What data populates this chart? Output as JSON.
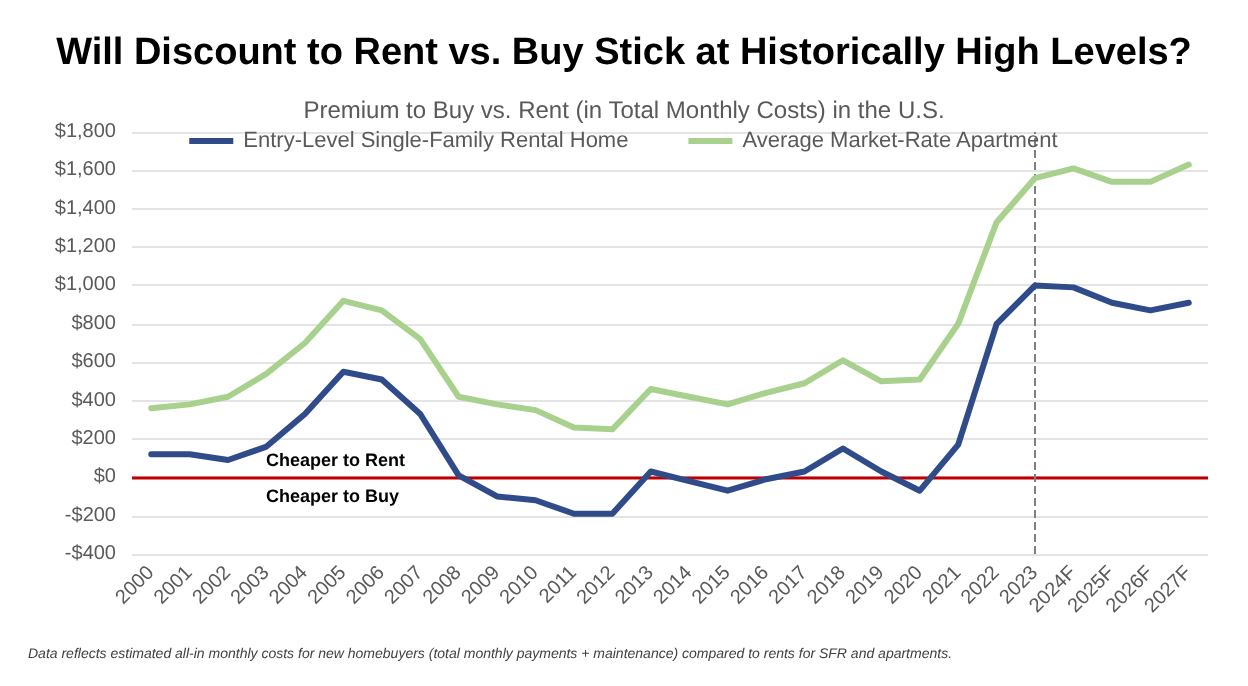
{
  "chart_data": {
    "type": "line",
    "title": "Will Discount to Rent vs. Buy Stick at Historically High Levels?",
    "subtitle": "Premium to Buy vs. Rent (in Total Monthly Costs) in the U.S.",
    "categories": [
      "2000",
      "2001",
      "2002",
      "2003",
      "2004",
      "2005",
      "2006",
      "2007",
      "2008",
      "2009",
      "2010",
      "2011",
      "2012",
      "2013",
      "2014",
      "2015",
      "2016",
      "2017",
      "2018",
      "2019",
      "2020",
      "2021",
      "2022",
      "2023",
      "2024F",
      "2025F",
      "2026F",
      "2027F"
    ],
    "series": [
      {
        "name": "Entry-Level Single-Family Rental Home",
        "color": "#2f4b8a",
        "values": [
          120,
          120,
          90,
          160,
          330,
          550,
          510,
          330,
          10,
          -100,
          -120,
          -190,
          -190,
          30,
          -20,
          -70,
          -10,
          30,
          150,
          30,
          -70,
          170,
          800,
          1000,
          990,
          910,
          870,
          910
        ]
      },
      {
        "name": "Average Market-Rate Apartment",
        "color": "#a9d18e",
        "values": [
          360,
          380,
          420,
          540,
          700,
          920,
          870,
          720,
          420,
          380,
          350,
          260,
          250,
          460,
          420,
          380,
          440,
          490,
          610,
          500,
          510,
          800,
          1330,
          1560,
          1610,
          1540,
          1540,
          1630
        ]
      }
    ],
    "ylim": [
      -400,
      1800
    ],
    "yticks": [
      {
        "value": -400,
        "label": "-$400"
      },
      {
        "value": -200,
        "label": "-$200"
      },
      {
        "value": 0,
        "label": "$0"
      },
      {
        "value": 200,
        "label": "$200"
      },
      {
        "value": 400,
        "label": "$400"
      },
      {
        "value": 600,
        "label": "$600"
      },
      {
        "value": 800,
        "label": "$800"
      },
      {
        "value": 1000,
        "label": "$1,000"
      },
      {
        "value": 1200,
        "label": "$1,200"
      },
      {
        "value": 1400,
        "label": "$1,400"
      },
      {
        "value": 1600,
        "label": "$1,600"
      },
      {
        "value": 1800,
        "label": "$1,800"
      }
    ],
    "grid": "y",
    "legend": "top",
    "marker": "none",
    "line_style": "solid",
    "ref_lines": [
      {
        "axis": "y",
        "value": 0,
        "color": "#c00000",
        "line_style": "solid"
      },
      {
        "axis": "x",
        "value": "2023",
        "color": "#7f7f7f",
        "line_style": "dashed"
      }
    ],
    "annotations": [
      "Cheaper to Rent",
      "Cheaper to Buy",
      "Data reflects estimated all-in monthly costs for new homebuyers (total monthly payments + maintenance) compared to rents for SFR and apartments."
    ]
  }
}
